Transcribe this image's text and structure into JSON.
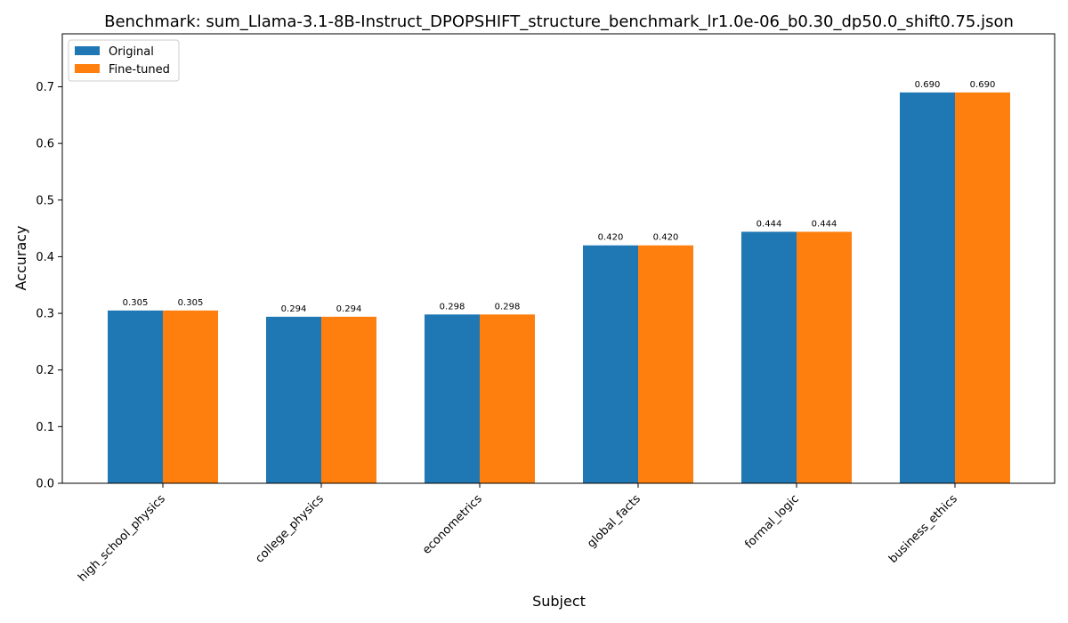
{
  "chart_data": {
    "type": "bar",
    "title": "Benchmark: sum_Llama-3.1-8B-Instruct_DPOPSHIFT_structure_benchmark_lr1.0e-06_b0.30_dp50.0_shift0.75.json",
    "xlabel": "Subject",
    "ylabel": "Accuracy",
    "categories": [
      "high_school_physics",
      "college_physics",
      "econometrics",
      "global_facts",
      "formal_logic",
      "business_ethics"
    ],
    "series": [
      {
        "name": "Original",
        "color": "#1f77b4",
        "values": [
          0.305,
          0.294,
          0.298,
          0.42,
          0.444,
          0.69
        ],
        "labels": [
          "0.305",
          "0.294",
          "0.298",
          "0.420",
          "0.444",
          "0.690"
        ]
      },
      {
        "name": "Fine-tuned",
        "color": "#ff7f0e",
        "values": [
          0.305,
          0.294,
          0.298,
          0.42,
          0.444,
          0.69
        ],
        "labels": [
          "0.305",
          "0.294",
          "0.298",
          "0.420",
          "0.444",
          "0.690"
        ]
      }
    ],
    "ylim": [
      0,
      0.7935
    ],
    "yticks": [
      "0.0",
      "0.1",
      "0.2",
      "0.3",
      "0.4",
      "0.5",
      "0.6",
      "0.7"
    ],
    "grid": false,
    "legend_position": "top-left"
  }
}
